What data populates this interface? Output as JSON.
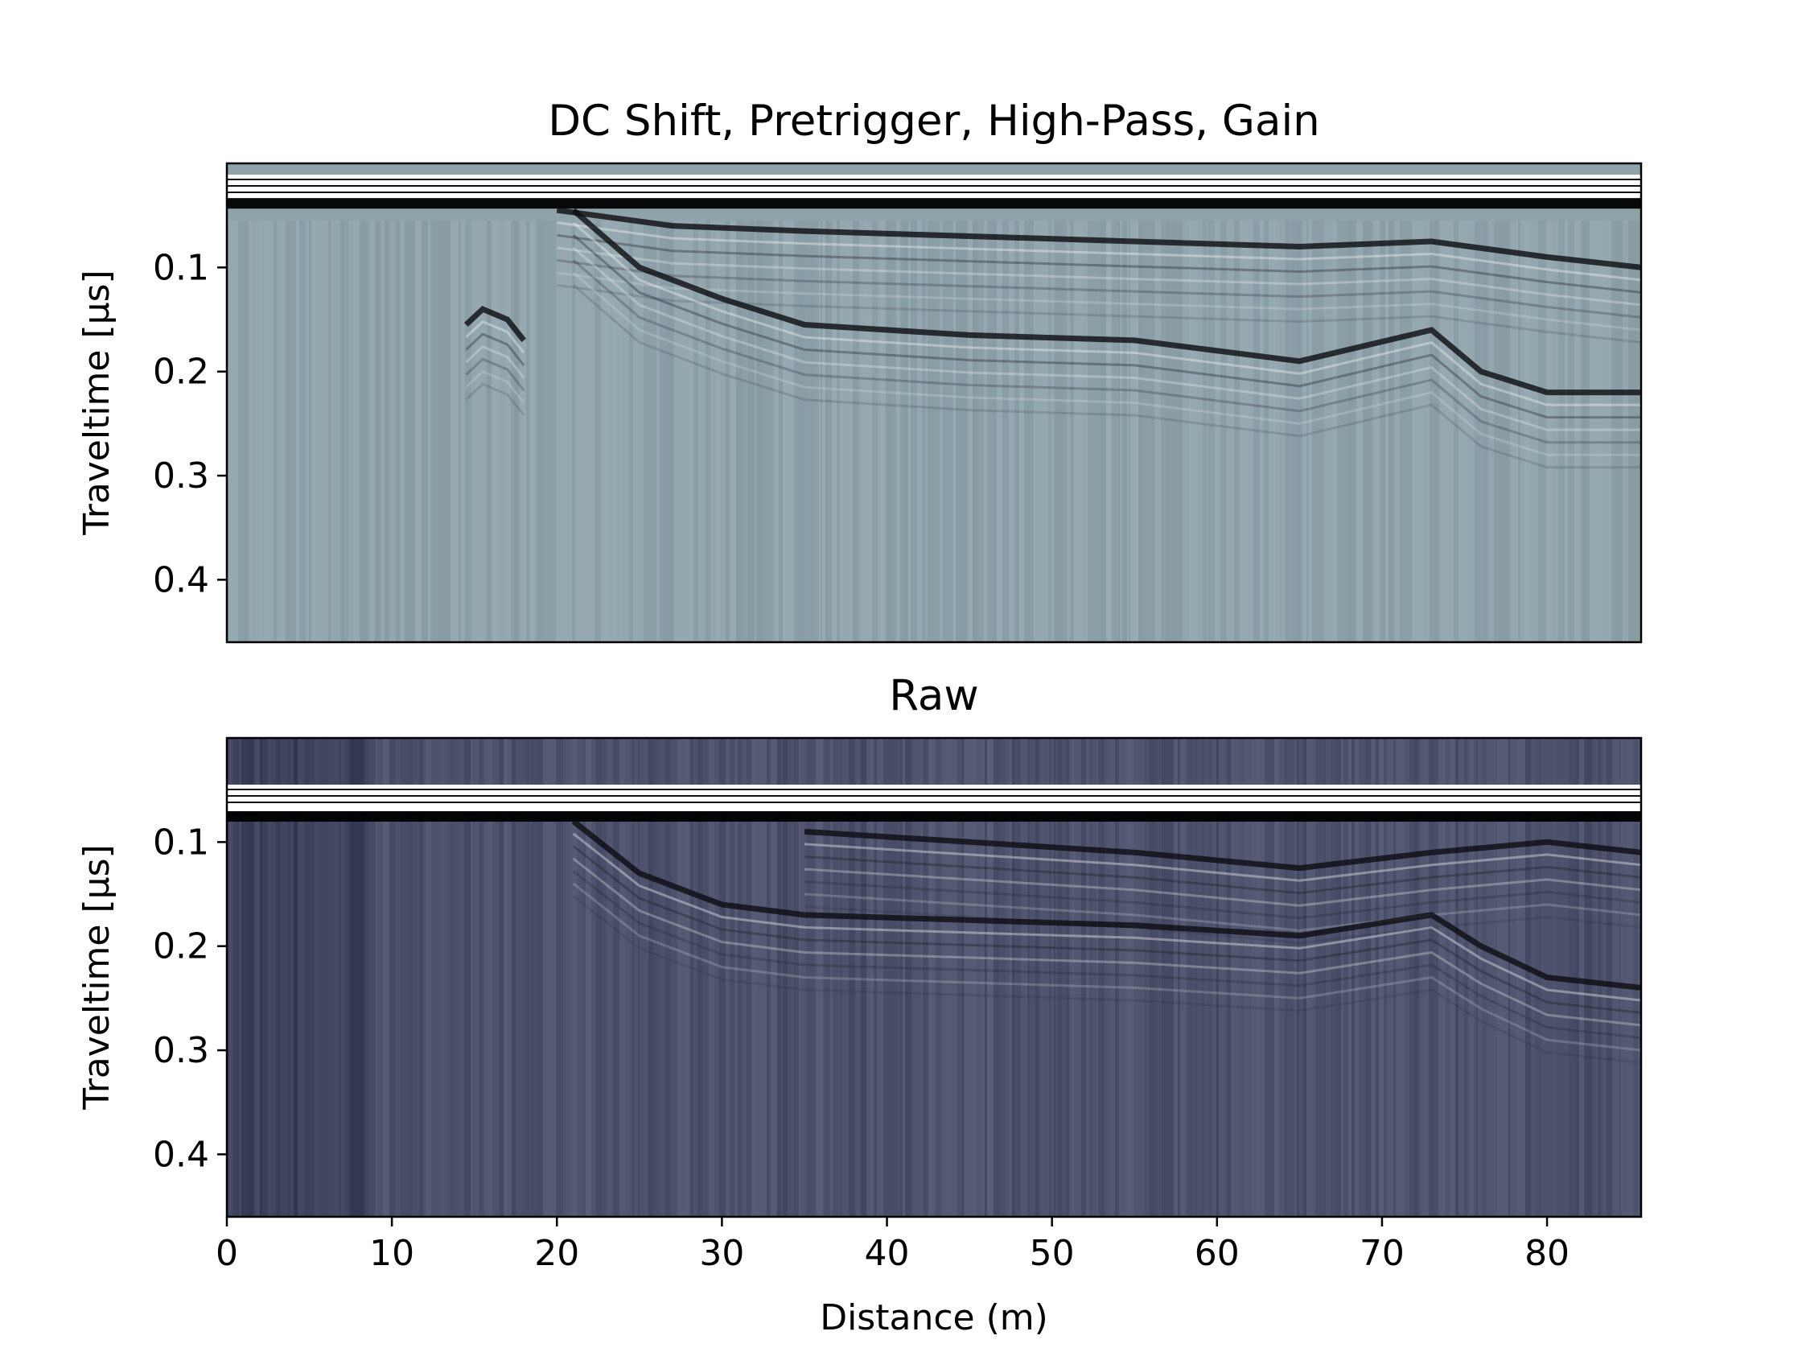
{
  "chart_data": [
    {
      "type": "heatmap",
      "title": "DC Shift, Pretrigger, High-Pass, Gain",
      "xlabel": "",
      "ylabel": "Traveltime [μs]",
      "xlim": [
        0,
        85.7
      ],
      "ylim": [
        0.46,
        0.0
      ],
      "yticks": [
        0.1,
        0.2,
        0.3,
        0.4
      ],
      "ytick_labels": [
        "0.1",
        "0.2",
        "0.3",
        "0.4"
      ],
      "colormap": "bone",
      "background_color": "#8fa3ab",
      "reflectors": [
        {
          "name": "direct-wave-top",
          "x": [
            0,
            85.7
          ],
          "y": [
            0.038,
            0.038
          ]
        },
        {
          "name": "shallow-layer-a",
          "x": [
            20,
            27,
            35,
            45,
            55,
            65,
            73,
            80,
            85.7
          ],
          "y": [
            0.045,
            0.06,
            0.065,
            0.07,
            0.075,
            0.08,
            0.075,
            0.09,
            0.1
          ]
        },
        {
          "name": "dipping-layer",
          "x": [
            21,
            25,
            30,
            35,
            45,
            55,
            65,
            73,
            76,
            80,
            85.7
          ],
          "y": [
            0.045,
            0.1,
            0.13,
            0.155,
            0.165,
            0.17,
            0.19,
            0.16,
            0.2,
            0.22,
            0.22
          ]
        },
        {
          "name": "diffraction-15m",
          "x": [
            14.5,
            15.5,
            17,
            18
          ],
          "y": [
            0.155,
            0.14,
            0.15,
            0.17
          ]
        }
      ]
    },
    {
      "type": "heatmap",
      "title": "Raw",
      "xlabel": "Distance (m)",
      "ylabel": "Traveltime [μs]",
      "xlim": [
        0,
        85.7
      ],
      "ylim": [
        0.46,
        0.0
      ],
      "xticks": [
        0,
        10,
        20,
        30,
        40,
        50,
        60,
        70,
        80
      ],
      "xtick_labels": [
        "0",
        "10",
        "20",
        "30",
        "40",
        "50",
        "60",
        "70",
        "80"
      ],
      "yticks": [
        0.1,
        0.2,
        0.3,
        0.4
      ],
      "ytick_labels": [
        "0.1",
        "0.2",
        "0.3",
        "0.4"
      ],
      "colormap": "bone",
      "background_color": "#4c4f6e",
      "reflectors": [
        {
          "name": "direct-wave-top",
          "x": [
            0,
            85.7
          ],
          "y": [
            0.075,
            0.075
          ]
        },
        {
          "name": "shallow-layer-a",
          "x": [
            35,
            45,
            55,
            65,
            73,
            80,
            85.7
          ],
          "y": [
            0.09,
            0.1,
            0.11,
            0.125,
            0.11,
            0.1,
            0.11
          ]
        },
        {
          "name": "dipping-layer",
          "x": [
            21,
            25,
            30,
            35,
            45,
            55,
            65,
            73,
            76,
            80,
            85.7
          ],
          "y": [
            0.08,
            0.13,
            0.16,
            0.17,
            0.175,
            0.18,
            0.19,
            0.17,
            0.2,
            0.23,
            0.24
          ]
        }
      ]
    }
  ]
}
